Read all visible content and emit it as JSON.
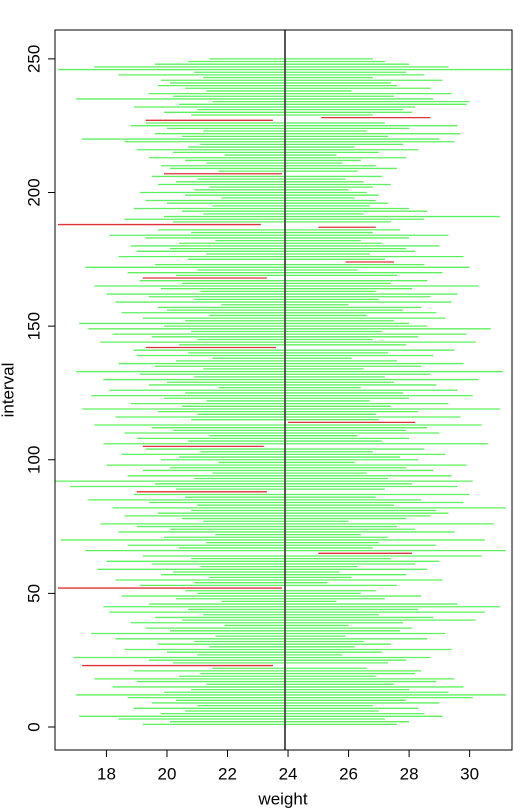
{
  "chart_data": {
    "type": "interval",
    "xlabel": "weight",
    "ylabel": "interval",
    "xlim": [
      16.3,
      31.4
    ],
    "ylim": [
      -8.6,
      260.8
    ],
    "xticks": [
      18,
      20,
      22,
      24,
      26,
      28,
      30
    ],
    "yticks": [
      0,
      50,
      100,
      150,
      200,
      250
    ],
    "true_value": 23.9,
    "line_color": "#555555",
    "cover_color": "#5ef05e",
    "miss_color": "#e0303a",
    "interval": [
      1,
      2,
      3,
      4,
      5,
      6,
      7,
      8,
      9,
      10,
      11,
      12,
      13,
      14,
      15,
      16,
      17,
      18,
      19,
      20,
      21,
      22,
      23,
      24,
      25,
      26,
      27,
      28,
      29,
      30,
      31,
      32,
      33,
      34,
      35,
      36,
      37,
      38,
      39,
      40,
      41,
      42,
      43,
      44,
      45,
      46,
      47,
      48,
      49,
      50,
      51,
      52,
      53,
      54,
      55,
      56,
      57,
      58,
      59,
      60,
      61,
      62,
      63,
      64,
      65,
      66,
      67,
      68,
      69,
      70,
      71,
      72,
      73,
      74,
      75,
      76,
      77,
      78,
      79,
      80,
      81,
      82,
      83,
      84,
      85,
      86,
      87,
      88,
      89,
      90,
      91,
      92,
      93,
      94,
      95,
      96,
      97,
      98,
      99,
      100,
      101,
      102,
      103,
      104,
      105,
      106,
      107,
      108,
      109,
      110,
      111,
      112,
      113,
      114,
      115,
      116,
      117,
      118,
      119,
      120,
      121,
      122,
      123,
      124,
      125,
      126,
      127,
      128,
      129,
      130,
      131,
      132,
      133,
      134,
      135,
      136,
      137,
      138,
      139,
      140,
      141,
      142,
      143,
      144,
      145,
      146,
      147,
      148,
      149,
      150,
      151,
      152,
      153,
      154,
      155,
      156,
      157,
      158,
      159,
      160,
      161,
      162,
      163,
      164,
      165,
      166,
      167,
      168,
      169,
      170,
      171,
      172,
      173,
      174,
      175,
      176,
      177,
      178,
      179,
      180,
      181,
      182,
      183,
      184,
      185,
      186,
      187,
      188,
      189,
      190,
      191,
      192,
      193,
      194,
      195,
      196,
      197,
      198,
      199,
      200,
      201,
      202,
      203,
      204,
      205,
      206,
      207,
      208,
      209,
      210,
      211,
      212,
      213,
      214,
      215,
      216,
      217,
      218,
      219,
      220,
      221,
      222,
      223,
      224,
      225,
      226,
      227,
      228,
      229,
      230,
      231,
      232,
      233,
      234,
      235,
      236,
      237,
      238,
      239,
      240,
      241,
      242,
      243,
      244,
      245,
      246,
      247,
      248,
      249,
      250
    ],
    "lower": [
      19.2,
      20.1,
      18.4,
      17.1,
      19.8,
      20.6,
      18.9,
      21.0,
      19.5,
      20.3,
      18.7,
      17.0,
      19.9,
      20.8,
      18.2,
      21.3,
      19.0,
      17.6,
      20.4,
      21.1,
      18.9,
      21.5,
      17.2,
      20.2,
      19.4,
      16.9,
      21.0,
      20.0,
      18.6,
      21.4,
      19.7,
      20.9,
      18.3,
      21.6,
      17.5,
      20.1,
      19.3,
      21.9,
      18.8,
      20.5,
      19.6,
      21.2,
      18.1,
      20.7,
      17.9,
      19.4,
      21.8,
      20.3,
      18.5,
      21.0,
      20.6,
      16.4,
      19.1,
      20.9,
      18.3,
      21.4,
      19.8,
      20.2,
      17.7,
      21.1,
      19.5,
      18.0,
      20.8,
      19.2,
      25.0,
      17.3,
      20.4,
      18.7,
      21.3,
      16.5,
      19.9,
      21.6,
      18.4,
      20.1,
      19.0,
      17.8,
      21.2,
      20.5,
      18.6,
      19.7,
      20.8,
      18.2,
      21.0,
      19.4,
      17.4,
      20.6,
      18.9,
      19.0,
      20.3,
      16.8,
      19.6,
      16.3,
      20.9,
      18.7,
      21.5,
      19.2,
      20.1,
      18.0,
      21.7,
      19.8,
      20.4,
      18.5,
      21.1,
      19.3,
      19.2,
      17.9,
      20.7,
      19.0,
      21.4,
      18.6,
      20.2,
      19.5,
      17.6,
      24.0,
      20.8,
      18.3,
      21.0,
      19.7,
      17.2,
      20.5,
      18.8,
      21.3,
      19.9,
      17.5,
      20.6,
      18.1,
      21.7,
      19.4,
      20.0,
      17.9,
      20.9,
      19.1,
      17.0,
      21.2,
      19.6,
      18.4,
      20.3,
      21.5,
      19.0,
      20.7,
      18.9,
      19.3,
      20.4,
      17.8,
      21.0,
      19.5,
      18.2,
      20.8,
      17.4,
      19.9,
      17.1,
      20.6,
      19.2,
      21.4,
      18.5,
      20.0,
      19.7,
      21.8,
      18.3,
      20.9,
      19.4,
      18.0,
      21.1,
      19.8,
      17.6,
      20.5,
      19.1,
      19.2,
      20.3,
      18.7,
      21.0,
      17.3,
      19.6,
      25.9,
      20.7,
      18.4,
      21.3,
      19.0,
      20.1,
      18.8,
      20.4,
      21.6,
      19.3,
      18.1,
      20.8,
      19.7,
      25.0,
      16.4,
      20.2,
      18.6,
      19.9,
      21.2,
      20.5,
      18.9,
      21.5,
      20.0,
      19.3,
      21.8,
      20.6,
      19.1,
      20.9,
      21.4,
      19.7,
      20.3,
      21.0,
      19.5,
      19.9,
      21.7,
      20.1,
      19.8,
      21.3,
      20.6,
      19.4,
      21.9,
      20.2,
      19.0,
      20.7,
      21.1,
      18.6,
      17.2,
      20.5,
      19.6,
      21.2,
      20.0,
      18.8,
      19.3,
      19.3,
      25.1,
      20.8,
      19.9,
      21.0,
      18.9,
      20.4,
      21.5,
      17.0,
      20.2,
      19.4,
      21.3,
      20.6,
      19.7,
      20.1,
      19.8,
      21.2,
      18.4,
      20.9,
      16.4,
      17.6,
      19.6,
      20.7,
      21.4
    ],
    "upper": [
      27.6,
      28.0,
      27.2,
      29.1,
      28.5,
      27.0,
      28.3,
      26.8,
      29.0,
      27.9,
      30.1,
      31.2,
      29.3,
      28.0,
      29.8,
      27.5,
      28.9,
      29.5,
      26.9,
      28.2,
      28.4,
      26.6,
      23.5,
      27.3,
      27.9,
      28.7,
      25.8,
      27.1,
      29.4,
      26.2,
      27.4,
      26.5,
      28.6,
      25.9,
      29.2,
      27.7,
      28.1,
      26.0,
      27.8,
      30.2,
      28.8,
      27.0,
      30.5,
      28.3,
      31.0,
      29.6,
      25.6,
      27.2,
      28.4,
      26.4,
      26.9,
      23.8,
      27.6,
      25.3,
      29.1,
      26.1,
      27.9,
      25.7,
      28.6,
      26.3,
      28.2,
      29.0,
      27.4,
      30.4,
      28.1,
      31.2,
      26.8,
      28.9,
      27.0,
      30.5,
      27.3,
      26.4,
      29.5,
      28.2,
      27.6,
      30.8,
      26.0,
      27.9,
      28.7,
      29.3,
      28.9,
      31.2,
      27.5,
      29.8,
      28.4,
      26.9,
      30.0,
      23.3,
      27.2,
      29.6,
      28.1,
      30.1,
      27.3,
      29.4,
      26.6,
      28.8,
      27.9,
      29.9,
      26.2,
      28.3,
      27.7,
      29.2,
      26.8,
      28.5,
      23.2,
      30.6,
      27.1,
      28.0,
      26.3,
      29.0,
      27.9,
      28.6,
      30.4,
      28.2,
      27.0,
      29.7,
      26.9,
      28.3,
      31.0,
      27.4,
      29.3,
      26.7,
      28.0,
      30.1,
      27.8,
      29.6,
      26.4,
      28.9,
      27.5,
      30.3,
      27.2,
      28.7,
      31.1,
      26.5,
      28.4,
      29.8,
      27.6,
      26.1,
      28.8,
      27.3,
      29.5,
      23.6,
      27.9,
      30.2,
      26.8,
      28.3,
      29.9,
      27.1,
      30.7,
      28.6,
      28.0,
      27.5,
      29.2,
      26.6,
      28.9,
      27.8,
      28.4,
      26.0,
      29.4,
      27.0,
      28.7,
      29.6,
      26.9,
      28.1,
      30.3,
      27.4,
      28.6,
      23.3,
      27.6,
      29.1,
      26.3,
      30.0,
      28.5,
      27.5,
      27.2,
      29.8,
      26.7,
      28.2,
      27.9,
      29.0,
      27.1,
      26.4,
      28.0,
      29.3,
      26.8,
      27.7,
      26.9,
      23.1,
      27.4,
      28.5,
      31.0,
      26.5,
      28.6,
      28.0,
      26.7,
      27.3,
      26.9,
      26.2,
      27.0,
      26.6,
      26.0,
      26.8,
      27.4,
      26.5,
      25.9,
      27.1,
      23.8,
      26.3,
      27.6,
      26.9,
      25.8,
      26.4,
      27.9,
      25.6,
      27.0,
      28.3,
      26.2,
      27.8,
      29.5,
      29.0,
      27.3,
      29.7,
      26.6,
      28.0,
      29.6,
      27.2,
      23.5,
      28.7,
      26.8,
      28.1,
      27.8,
      28.2,
      29.9,
      30.0,
      28.8,
      27.5,
      29.4,
      26.1,
      28.7,
      27.6,
      27.4,
      29.1,
      26.8,
      28.5,
      27.9,
      31.4,
      29.3,
      28.0,
      27.2,
      26.8
    ]
  }
}
